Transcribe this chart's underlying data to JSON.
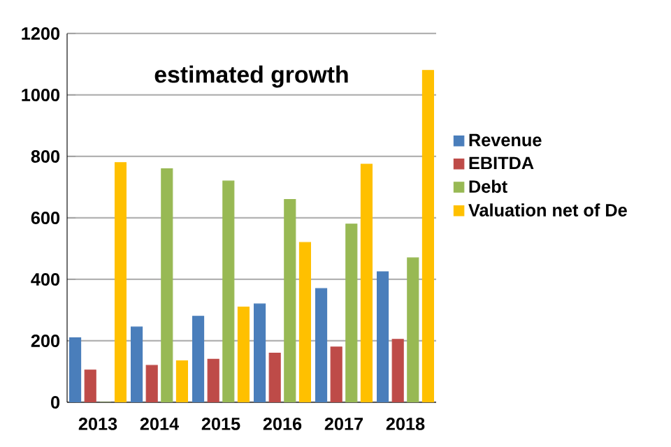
{
  "chart_data": {
    "type": "bar",
    "title": "estimated growth",
    "categories": [
      "2013",
      "2014",
      "2015",
      "2016",
      "2017",
      "2018"
    ],
    "series": [
      {
        "name": "Revenue",
        "color": "#4a7ebb",
        "values": [
          210,
          245,
          280,
          320,
          370,
          425
        ]
      },
      {
        "name": "EBITDA",
        "color": "#be4b48",
        "values": [
          105,
          120,
          140,
          160,
          180,
          205
        ]
      },
      {
        "name": "Debt",
        "color": "#98b954",
        "values": [
          0,
          760,
          720,
          660,
          580,
          470
        ]
      },
      {
        "name": "Valuation net of De",
        "color": "#ffc000",
        "values": [
          780,
          135,
          310,
          520,
          775,
          1080
        ]
      }
    ],
    "ylim": [
      0,
      1200
    ],
    "yticks": [
      0,
      200,
      400,
      600,
      800,
      1000,
      1200
    ],
    "grid": "y",
    "legend": "right"
  }
}
